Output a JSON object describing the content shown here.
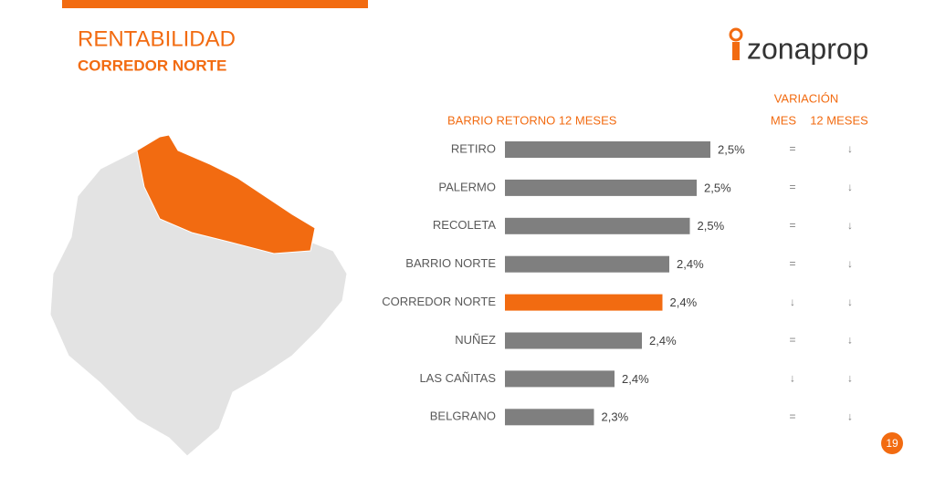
{
  "header": {
    "title": "RENTABILIDAD",
    "subtitle": "CORREDOR NORTE",
    "logo": "zonaprop",
    "page_number": "19"
  },
  "chart_data": {
    "type": "bar",
    "orientation": "horizontal",
    "category_header": "BARRIO RETORNO 12 MESES",
    "categories": [
      "RETIRO",
      "PALERMO",
      "RECOLETA",
      "BARRIO NORTE",
      "CORREDOR NORTE",
      "NUÑEZ",
      "LAS CAÑITAS",
      "BELGRANO"
    ],
    "values": [
      2.5,
      2.48,
      2.47,
      2.44,
      2.43,
      2.4,
      2.36,
      2.33
    ],
    "value_labels": [
      "2,5%",
      "2,5%",
      "2,5%",
      "2,4%",
      "2,4%",
      "2,4%",
      "2,4%",
      "2,3%"
    ],
    "colors": [
      "#7f7f7f",
      "#7f7f7f",
      "#7f7f7f",
      "#7f7f7f",
      "#f26b11",
      "#7f7f7f",
      "#7f7f7f",
      "#7f7f7f"
    ],
    "xlim": [
      2.2,
      2.5
    ],
    "variation": {
      "title": "VARIACIÓN",
      "columns": [
        "MES",
        "12 MESES"
      ],
      "rows": [
        [
          "=",
          "↓"
        ],
        [
          "=",
          "↓"
        ],
        [
          "=",
          "↓"
        ],
        [
          "=",
          "↓"
        ],
        [
          "↓",
          "↓"
        ],
        [
          "=",
          "↓"
        ],
        [
          "↓",
          "↓"
        ],
        [
          "=",
          "↓"
        ]
      ]
    }
  }
}
